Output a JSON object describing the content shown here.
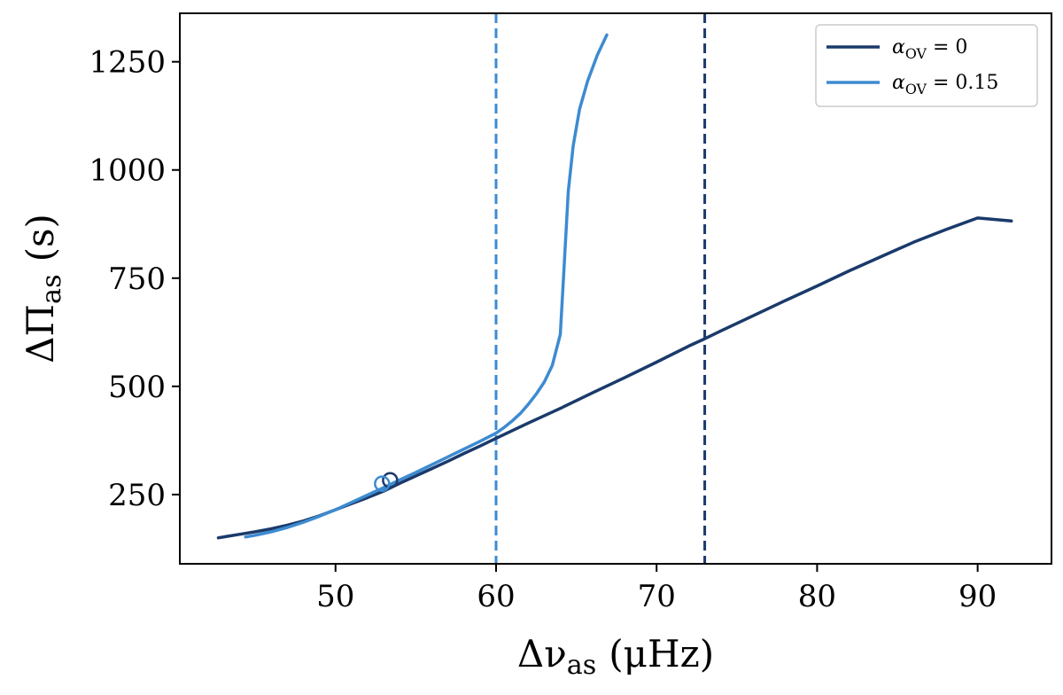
{
  "chart_data": {
    "type": "line",
    "title": "",
    "xlabel": {
      "main": "Δν",
      "sub": "as",
      "unit": "(μHz)"
    },
    "ylabel": {
      "main": "ΔΠ",
      "sub": "as",
      "unit": "(s)"
    },
    "xlim": [
      40.3,
      94.6
    ],
    "ylim": [
      90,
      1362
    ],
    "xticks": [
      50,
      60,
      70,
      80,
      90
    ],
    "yticks": [
      250,
      500,
      750,
      1000,
      1250
    ],
    "grid": false,
    "legend_position": "top-right",
    "series": [
      {
        "name": "α",
        "name_sub": "OV",
        "name_suffix": " = 0",
        "color": "#1a3a6b",
        "x": [
          42.7,
          44,
          45,
          46,
          47,
          48,
          49,
          50,
          51,
          52,
          53,
          54,
          55,
          56,
          57,
          58,
          59,
          60,
          62,
          64,
          66,
          68,
          70,
          72,
          73,
          74,
          76,
          78,
          80,
          82,
          84,
          86,
          88,
          90,
          92.1
        ],
        "y": [
          150,
          158,
          164,
          171,
          179,
          189,
          201,
          215,
          229,
          243,
          258,
          276,
          293,
          310,
          327,
          345,
          362,
          380,
          415,
          449,
          485,
          520,
          556,
          593,
          610,
          628,
          663,
          698,
          732,
          767,
          800,
          833,
          862,
          889,
          882
        ]
      },
      {
        "name": "α",
        "name_sub": "OV",
        "name_suffix": " = 0.15",
        "color": "#3d8bd1",
        "x": [
          44.4,
          45,
          46,
          47,
          48,
          49,
          50,
          51,
          52,
          53,
          54,
          55,
          56,
          57,
          58,
          59,
          60,
          60.5,
          61,
          61.5,
          62,
          62.5,
          63,
          63.5,
          64,
          64.2,
          64.5,
          64.8,
          65.2,
          65.7,
          66.3,
          66.9
        ],
        "y": [
          152,
          156,
          164,
          174,
          186,
          200,
          215,
          232,
          249,
          266,
          284,
          301,
          319,
          337,
          355,
          373,
          392,
          405,
          420,
          437,
          458,
          482,
          510,
          548,
          620,
          750,
          950,
          1055,
          1140,
          1205,
          1265,
          1312
        ]
      }
    ],
    "markers": [
      {
        "x": 53.4,
        "y": 283,
        "color": "#1a3a6b"
      },
      {
        "x": 52.9,
        "y": 275,
        "color": "#3d8bd1"
      }
    ],
    "vlines": [
      {
        "x": 60,
        "color": "#3d8bd1",
        "style": "dashed"
      },
      {
        "x": 73,
        "color": "#1a3a6b",
        "style": "dashed"
      }
    ]
  }
}
